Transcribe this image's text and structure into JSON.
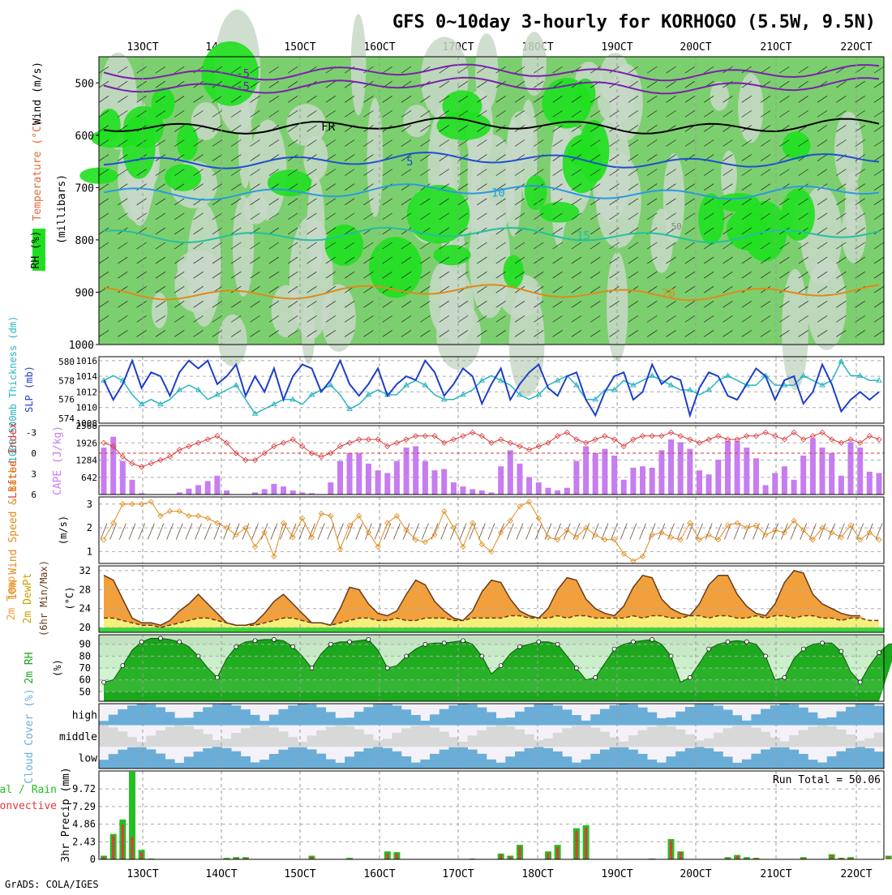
{
  "title": "GFS 0~10day 3-hourly for KORHOGO (5.5W, 9.5N)",
  "footer": "GrADS: COLA/IGES",
  "time_labels": [
    "13OCT",
    "14OCT",
    "15OCT",
    "16OCT",
    "17OCT",
    "18OCT",
    "19OCT",
    "20OCT",
    "21OCT",
    "22OCT"
  ],
  "colors": {
    "rh_light": "#c8d8c8",
    "rh_mid": "#7ccf6e",
    "rh_green": "#1fe01f",
    "slp": "#1e3fc8",
    "thickness": "#2ab4c4",
    "lifted": "#d83a3a",
    "cape": "#c77cf0",
    "wind": "#e08a1a",
    "temp_fill": "#f2a03c",
    "dew_fill": "#f6f07a",
    "rh_fill": "#1ca81c",
    "cloud": "#6aaed8",
    "precip_total": "#22c022",
    "precip_conv": "#e03a3a"
  },
  "chart_data": [
    {
      "panel": "upper_air",
      "type": "heatmap",
      "ylabel_left_rh": "RH (%)",
      "ylabel_temp": "Temperature (°C)",
      "ylabel_wind": "Wind (m/s)",
      "ylabel_units": "(millibars)",
      "yticks": [
        500,
        600,
        700,
        800,
        900,
        1000
      ],
      "ylim": [
        1000,
        450
      ],
      "contours": [
        {
          "label": "-5",
          "level_mb": [
            480,
            505
          ]
        },
        {
          "label": "FR",
          "level_mb": 582
        },
        {
          "label": "5",
          "level_mb": 648
        },
        {
          "label": "10",
          "level_mb": 708
        },
        {
          "label": "15",
          "level_mb": 790
        },
        {
          "label": "20",
          "level_mb": 900
        }
      ],
      "extra_labels": [
        "50"
      ]
    },
    {
      "panel": "slp_thickness",
      "type": "line",
      "ylabel_left": "1000-500mb Thickness (dm)",
      "ylabel_right": "SLP (mb)",
      "yticks_left": [
        574,
        576,
        578,
        580
      ],
      "yticks_right": [
        1008,
        1010,
        1012,
        1014,
        1016
      ],
      "ylim_right": [
        1008,
        1016.5
      ],
      "series": [
        {
          "name": "SLP (mb)",
          "values": [
            1013.5,
            1011,
            1013,
            1016,
            1012.5,
            1014.5,
            1014,
            1011.5,
            1014.5,
            1016,
            1015,
            1016,
            1013,
            1014,
            1015.5,
            1011.5,
            1014,
            1012,
            1015,
            1011,
            1014,
            1015.5,
            1015,
            1012,
            1013.5,
            1016,
            1013,
            1011.5,
            1013,
            1015,
            1011.5,
            1013,
            1014,
            1013.5,
            1016,
            1014.5,
            1011.5,
            1013,
            1015,
            1014,
            1010.5,
            1013,
            1015,
            1011,
            1013,
            1014.5,
            1015.5,
            1012.5,
            1011.5,
            1014,
            1014.5,
            1011,
            1009,
            1012,
            1014,
            1014.5,
            1011,
            1012,
            1015.5,
            1013,
            1014,
            1013.5,
            1009,
            1012.5,
            1014.5,
            1014,
            1011.5,
            1011,
            1013,
            1015,
            1014,
            1011,
            1013.5,
            1014,
            1010.5,
            1012,
            1015.5,
            1013,
            1009.5,
            1011,
            1012,
            1011,
            1012
          ]
        },
        {
          "name": "1000-500mb Thickness (dm)",
          "values": [
            578,
            578.5,
            578,
            576.5,
            575.5,
            576,
            575.5,
            576,
            577,
            577.5,
            577,
            576,
            576.5,
            577,
            577.5,
            576,
            574.5,
            575,
            575.5,
            576,
            576,
            575.5,
            576.5,
            577,
            577.5,
            576.5,
            575,
            575.5,
            576.5,
            577,
            576.5,
            576.5,
            577.5,
            578,
            577.5,
            576.5,
            576,
            576,
            576.5,
            577,
            578,
            578.5,
            578,
            577.5,
            576.5,
            576,
            576.5,
            577.5,
            578,
            578.5,
            577.5,
            576,
            576,
            577,
            577,
            578,
            577.5,
            578,
            578.5,
            578,
            577.5,
            577,
            577,
            576.5,
            577,
            578,
            578.5,
            578,
            577.5,
            577.5,
            578.5,
            577.5,
            577.5,
            577.5,
            578.5,
            578,
            577.5,
            578,
            580,
            578.5,
            578.5,
            578,
            578
          ]
        }
      ]
    },
    {
      "panel": "lifted_cape",
      "type": "bar",
      "ylabel_left": "Lifted Index",
      "ylabel_right": "CAPE (J/kg)",
      "yticks_left": [
        -3,
        0,
        3,
        6
      ],
      "yticks_right": [
        642,
        1284,
        1926,
        2568
      ],
      "ylim_cape": [
        0,
        2568
      ],
      "series": [
        {
          "name": "CAPE (J/kg)",
          "values": [
            1750,
            2150,
            1250,
            550,
            50,
            0,
            0,
            0,
            80,
            220,
            350,
            500,
            700,
            150,
            0,
            0,
            80,
            200,
            400,
            300,
            150,
            80,
            50,
            0,
            450,
            1250,
            1550,
            1550,
            1150,
            900,
            800,
            1250,
            1750,
            1800,
            1250,
            900,
            950,
            450,
            300,
            200,
            150,
            80,
            1050,
            1650,
            1150,
            650,
            450,
            250,
            150,
            250,
            1250,
            1800,
            1550,
            1700,
            1450,
            550,
            1000,
            1050,
            1000,
            1650,
            2050,
            1950,
            1700,
            900,
            750,
            1300,
            2000,
            2000,
            1750,
            1350,
            350,
            800,
            1050,
            550,
            1450,
            2100,
            1750,
            1550,
            700,
            1950,
            1750,
            850,
            800
          ]
        },
        {
          "name": "Lifted Index",
          "values": [
            -1.5,
            -1,
            0.5,
            1.5,
            2,
            1.5,
            1,
            0.5,
            -0.5,
            -1,
            -1.5,
            -2,
            -2.5,
            -1.5,
            0,
            1,
            1,
            0,
            -1,
            -1.5,
            -2,
            -1,
            0,
            0.5,
            0,
            -1,
            -1.5,
            -2,
            -2,
            -2,
            -1,
            -1.5,
            -2,
            -2.5,
            -2.5,
            -2.5,
            -1.5,
            -2,
            -2.5,
            -3,
            -2.5,
            -1.5,
            -2,
            -1.5,
            -1,
            -0.5,
            -1,
            -1.5,
            -2.5,
            -3,
            -2,
            -1.5,
            -2,
            -2.5,
            -2,
            -1,
            -2,
            -2.5,
            -2.5,
            -2.5,
            -3,
            -2.5,
            -2,
            -1.5,
            -2,
            -2.5,
            -2,
            -2,
            -2.5,
            -2.5,
            -3,
            -2.5,
            -2,
            -3,
            -2,
            -2.5,
            -3,
            -2,
            -1.5,
            -2,
            -1.5,
            -2.5,
            -2
          ]
        }
      ]
    },
    {
      "panel": "wind10m",
      "type": "line",
      "ylabel": "10m Wind Speed & Barbs",
      "units": "(m/s)",
      "yticks": [
        1,
        2,
        3
      ],
      "ylim": [
        0.5,
        3.3
      ],
      "series": [
        {
          "name": "10m Wind Speed",
          "values": [
            1.5,
            2.2,
            3,
            3,
            3,
            3.1,
            2.5,
            2.7,
            2.7,
            2.5,
            2.5,
            2.4,
            2.2,
            2,
            1.7,
            2,
            1.2,
            1.8,
            0.8,
            2.2,
            1.6,
            2.4,
            1.6,
            2.6,
            2.5,
            1.1,
            2.1,
            2.5,
            1.8,
            1.2,
            2.2,
            2.5,
            1.9,
            1.5,
            1.4,
            1.7,
            2.7,
            2,
            1.2,
            2.2,
            1.3,
            1,
            1.8,
            2.3,
            2.9,
            3.1,
            2.4,
            1.6,
            1.5,
            1.9,
            1.6,
            2,
            1.7,
            1.5,
            1.5,
            0.9,
            0.6,
            0.8,
            1.7,
            1.8,
            1.6,
            1.5,
            2.2,
            1.5,
            1.7,
            1.5,
            2.1,
            2.2,
            2,
            2.1,
            1.7,
            1.9,
            1.8,
            2.3,
            1.9,
            1.5,
            2,
            1.8,
            1.6,
            2.1,
            1.5,
            1.8,
            1.5
          ]
        }
      ]
    },
    {
      "panel": "temp_dew",
      "type": "area",
      "ylabel": "2m Temp 2m DewPt (6hr Min/Max)",
      "units": "(°C)",
      "yticks": [
        20,
        24,
        28,
        32
      ],
      "ylim": [
        19,
        33
      ],
      "series": [
        {
          "name": "2m Temp",
          "values": [
            31,
            30,
            26,
            22,
            21,
            21,
            20.5,
            21.5,
            23.5,
            25,
            27,
            25,
            23,
            21,
            20.5,
            20.5,
            21,
            23,
            25.5,
            27,
            25,
            23,
            21,
            21,
            20.5,
            24,
            28.5,
            28,
            25,
            23,
            22.5,
            23.5,
            27,
            30,
            29,
            25.5,
            23.5,
            22,
            21.5,
            23.5,
            27.5,
            30,
            29.5,
            26,
            23.5,
            22.5,
            22,
            24,
            28,
            30.5,
            30,
            26,
            24,
            23,
            22.5,
            24.5,
            28.5,
            31,
            30.5,
            26,
            24,
            23,
            22.5,
            25,
            29,
            31,
            31,
            27,
            24.5,
            23,
            22.5,
            25,
            29.5,
            32,
            31.5,
            27,
            25,
            24,
            23,
            22.5,
            22.5
          ]
        },
        {
          "name": "2m DewPt",
          "values": [
            22,
            22,
            21.5,
            21,
            20.5,
            20.5,
            20,
            20.5,
            21,
            21.5,
            22,
            22,
            21.5,
            21,
            20.5,
            20.5,
            20.5,
            21,
            21.5,
            22,
            22,
            21.5,
            21,
            21,
            20.5,
            21,
            21.5,
            22,
            22,
            21.5,
            21.5,
            22,
            21.5,
            21.5,
            22,
            22,
            22,
            21.5,
            21.5,
            22,
            22,
            22,
            22,
            22.5,
            22.5,
            22,
            22,
            22,
            22.5,
            22,
            22.5,
            22.5,
            22,
            22,
            22,
            22,
            22.5,
            22,
            22.5,
            22.5,
            22,
            22,
            22.5,
            22.5,
            22,
            22.5,
            22.5,
            22,
            22,
            22.5,
            22,
            22.5,
            22.5,
            22,
            22.5,
            22.5,
            22,
            22,
            21.5,
            22,
            22,
            21.5,
            21.5
          ]
        }
      ]
    },
    {
      "panel": "rh2m",
      "type": "area",
      "ylabel": "2m RH",
      "units": "(%)",
      "yticks": [
        50,
        60,
        70,
        80,
        90
      ],
      "ylim": [
        42,
        98
      ],
      "series": [
        {
          "name": "2m RH",
          "values": [
            58,
            60,
            72,
            85,
            92,
            95,
            95,
            94,
            92,
            88,
            80,
            70,
            62,
            78,
            88,
            92,
            93,
            94,
            94,
            93,
            88,
            80,
            70,
            82,
            90,
            92,
            92,
            93,
            94,
            85,
            70,
            72,
            80,
            86,
            90,
            91,
            91,
            92,
            93,
            90,
            80,
            65,
            72,
            82,
            88,
            90,
            92,
            92,
            90,
            80,
            70,
            60,
            62,
            74,
            86,
            90,
            92,
            93,
            94,
            90,
            80,
            58,
            62,
            74,
            86,
            90,
            92,
            93,
            92,
            90,
            80,
            60,
            62,
            78,
            86,
            90,
            91,
            91,
            84,
            67,
            58,
            72,
            83,
            90,
            91
          ]
        }
      ]
    },
    {
      "panel": "cloud",
      "type": "bar",
      "ylabel": "Cloud Cover (%)",
      "categories": [
        "high",
        "middle",
        "low"
      ]
    },
    {
      "panel": "precip",
      "type": "bar",
      "ylabel_left": "Total / Rain",
      "ylabel_conv": "Convective",
      "ylabel_main": "3hr Precip (mm)",
      "yticks": [
        0,
        2.43,
        4.86,
        7.29,
        9.72
      ],
      "ylim": [
        0,
        12.2
      ],
      "annotation": "Run Total = 50.06",
      "series": [
        {
          "name": "Total / Rain",
          "values": [
            0.5,
            3.5,
            5.5,
            12.1,
            1.3,
            0.1,
            0,
            0,
            0,
            0,
            0,
            0,
            0,
            0.2,
            0.3,
            0.3,
            0,
            0,
            0,
            0,
            0,
            0,
            0.5,
            0,
            0,
            0,
            0.2,
            0,
            0,
            0,
            1.1,
            1,
            0,
            0,
            0,
            0,
            0,
            0,
            0,
            0.1,
            0,
            0,
            0.8,
            0.5,
            2,
            0,
            0,
            1.1,
            2,
            0,
            4.3,
            4.7,
            0,
            0,
            0,
            0,
            0,
            0,
            0.1,
            0,
            2.8,
            1.1,
            0,
            0,
            0,
            0,
            0.3,
            0.6,
            0.3,
            0.2,
            0,
            0,
            0,
            0,
            0.3,
            0,
            0,
            0.7,
            0.2,
            0.3,
            0,
            0,
            0,
            0.5,
            1.6
          ]
        },
        {
          "name": "Convective",
          "values": [
            0.4,
            3.3,
            4.8,
            3.1,
            1,
            0.1,
            0,
            0,
            0,
            0,
            0,
            0,
            0,
            0.1,
            0.2,
            0.2,
            0,
            0,
            0,
            0,
            0,
            0,
            0.4,
            0,
            0,
            0,
            0.1,
            0,
            0,
            0,
            0.8,
            0.8,
            0,
            0,
            0,
            0,
            0,
            0,
            0,
            0.1,
            0,
            0,
            0.7,
            0.4,
            1.8,
            0,
            0,
            0.9,
            1.7,
            0,
            3.9,
            4.4,
            0,
            0,
            0,
            0,
            0,
            0,
            0.1,
            0,
            2.6,
            1,
            0,
            0,
            0,
            0,
            0.2,
            0.5,
            0.2,
            0.2,
            0,
            0,
            0,
            0,
            0.2,
            0,
            0,
            0.6,
            0.2,
            0.2,
            0,
            0,
            0,
            0.4,
            1.4
          ]
        }
      ]
    }
  ]
}
